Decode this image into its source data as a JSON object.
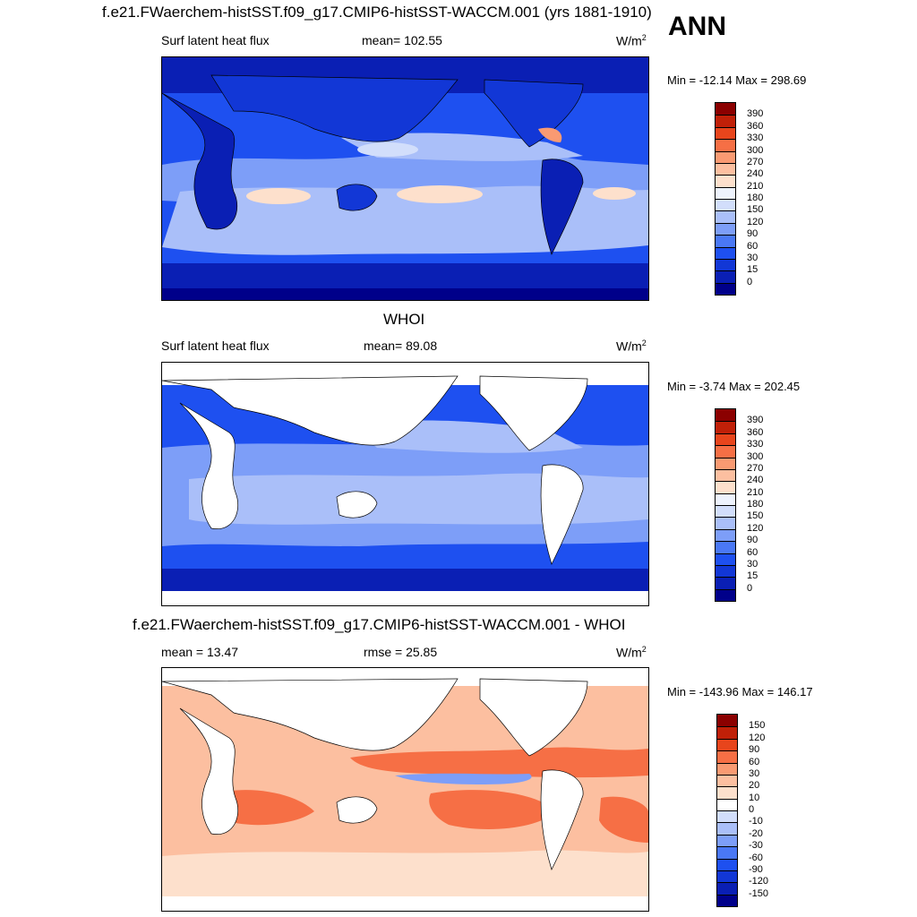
{
  "header": {
    "title": "f.e21.FWaerchem-histSST.f09_g17.CMIP6-histSST-WACCM.001 (yrs 1881-1910)",
    "season": "ANN"
  },
  "panels": [
    {
      "id": "model",
      "left_label": "Surf latent heat flux",
      "center_label": "mean= 102.55",
      "units_base": "W/m",
      "units_exp": "2",
      "minmax": "Min = -12.14 Max = 298.69"
    },
    {
      "id": "obs",
      "title": "WHOI",
      "left_label": "Surf latent heat flux",
      "center_label": "mean=  89.08",
      "units_base": "W/m",
      "units_exp": "2",
      "minmax": "Min =  -3.74 Max = 202.45"
    },
    {
      "id": "diff",
      "title": "f.e21.FWaerchem-histSST.f09_g17.CMIP6-histSST-WACCM.001 - WHOI",
      "left_label": "mean =  13.47",
      "center_label": "rmse =  25.85",
      "units_base": "W/m",
      "units_exp": "2",
      "minmax": "Min = -143.96 Max = 146.17"
    }
  ],
  "chart_data": [
    {
      "type": "heatmap",
      "title": "f.e21.FWaerchem-histSST.f09_g17.CMIP6-histSST-WACCM.001 (yrs 1881-1910)",
      "variable": "Surf latent heat flux",
      "units": "W/m2",
      "mean": 102.55,
      "min": -12.14,
      "max": 298.69,
      "levels": [
        0,
        15,
        30,
        60,
        90,
        120,
        150,
        180,
        210,
        240,
        270,
        300,
        330,
        360,
        390
      ],
      "colors": [
        "#00008a",
        "#0a1fb4",
        "#1237d6",
        "#1e50f0",
        "#4a78f5",
        "#7d9ef8",
        "#aabff9",
        "#d2defb",
        "#eef3fd",
        "#fde0cc",
        "#fcbfa0",
        "#f99a72",
        "#f66f45",
        "#e8451c",
        "#c02008",
        "#8b0000"
      ]
    },
    {
      "type": "heatmap",
      "title": "WHOI",
      "variable": "Surf latent heat flux",
      "units": "W/m2",
      "mean": 89.08,
      "min": -3.74,
      "max": 202.45,
      "levels": [
        0,
        15,
        30,
        60,
        90,
        120,
        150,
        180,
        210,
        240,
        270,
        300,
        330,
        360,
        390
      ],
      "colors": [
        "#00008a",
        "#0a1fb4",
        "#1237d6",
        "#1e50f0",
        "#4a78f5",
        "#7d9ef8",
        "#aabff9",
        "#d2defb",
        "#eef3fd",
        "#fde0cc",
        "#fcbfa0",
        "#f99a72",
        "#f66f45",
        "#e8451c",
        "#c02008",
        "#8b0000"
      ]
    },
    {
      "type": "heatmap",
      "title": "f.e21.FWaerchem-histSST.f09_g17.CMIP6-histSST-WACCM.001 - WHOI",
      "units": "W/m2",
      "mean": 13.47,
      "rmse": 25.85,
      "min": -143.96,
      "max": 146.17,
      "levels": [
        -150,
        -120,
        -90,
        -60,
        -30,
        -20,
        -10,
        0,
        10,
        20,
        30,
        60,
        90,
        120,
        150
      ],
      "colors": [
        "#00008a",
        "#0a1fb4",
        "#1237d6",
        "#1e50f0",
        "#4a78f5",
        "#7d9ef8",
        "#aabff9",
        "#d2defb",
        "#ffffff",
        "#fde0cc",
        "#fcbfa0",
        "#f99a72",
        "#f66f45",
        "#e8451c",
        "#c02008",
        "#8b0000"
      ]
    }
  ]
}
